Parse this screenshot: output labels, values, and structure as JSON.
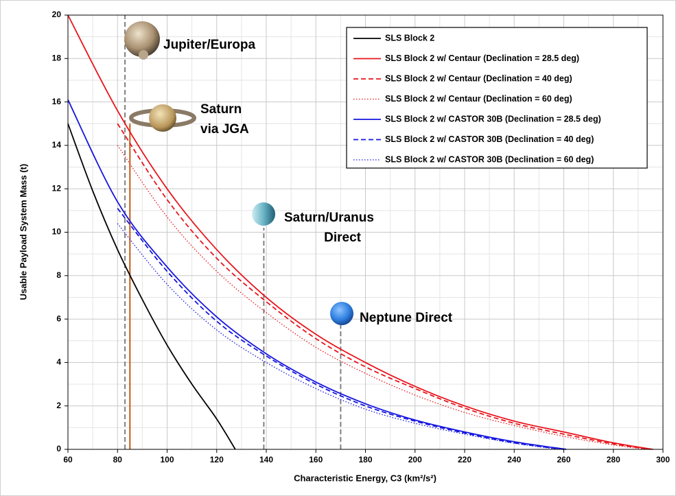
{
  "chart_data": {
    "type": "line",
    "x_label": "Characteristic Energy, C3 (km²/s²)",
    "y_label": "Usable Payload System Mass (t)",
    "xlim": [
      60,
      300
    ],
    "ylim": [
      0,
      20
    ],
    "xticks": [
      60,
      80,
      100,
      120,
      140,
      160,
      180,
      200,
      220,
      240,
      260,
      280,
      300
    ],
    "yticks": [
      0,
      2,
      4,
      6,
      8,
      10,
      12,
      14,
      16,
      18,
      20
    ],
    "x_minor_grid": [
      70,
      90,
      110,
      130,
      150,
      170,
      190,
      210,
      230,
      250,
      270,
      290
    ],
    "y_minor_grid": [
      1,
      3,
      5,
      7,
      9,
      11,
      13,
      15,
      17,
      19
    ],
    "grid": true,
    "legend": "upper right",
    "series": [
      {
        "name": "SLS Block 2",
        "color": "#000000",
        "style": "solid",
        "x": [
          60,
          70,
          80,
          90,
          100,
          110,
          120,
          127.5
        ],
        "values": [
          15,
          11.9,
          9.2,
          6.9,
          4.8,
          3.0,
          1.4,
          0
        ]
      },
      {
        "name": "SLS Block 2 w/ Centaur (Declination = 28.5 deg)",
        "color": "#e8141b",
        "style": "solid",
        "x": [
          60,
          80,
          100,
          120,
          140,
          160,
          180,
          200,
          220,
          240,
          260,
          280,
          296
        ],
        "values": [
          20,
          15.6,
          12.0,
          9.2,
          7.0,
          5.3,
          4.0,
          2.9,
          2.0,
          1.3,
          0.8,
          0.3,
          0
        ]
      },
      {
        "name": "SLS Block 2 w/ Centaur (Declination = 40 deg)",
        "color": "#e8141b",
        "style": "dashed",
        "x": [
          80,
          100,
          120,
          140,
          160,
          180,
          200,
          220,
          240,
          260,
          280,
          295
        ],
        "values": [
          15.0,
          11.5,
          8.8,
          6.8,
          5.1,
          3.8,
          2.8,
          1.9,
          1.2,
          0.7,
          0.25,
          0
        ]
      },
      {
        "name": "SLS Block 2 w/ Centaur (Declination = 60 deg)",
        "color": "#e8141b",
        "style": "dotted",
        "x": [
          80,
          100,
          120,
          140,
          160,
          180,
          200,
          220,
          240,
          260,
          280,
          294
        ],
        "values": [
          14.0,
          10.7,
          8.2,
          6.3,
          4.7,
          3.5,
          2.5,
          1.7,
          1.1,
          0.6,
          0.2,
          0
        ]
      },
      {
        "name": "SLS Block 2 w/ CASTOR 30B (Declination = 28.5 deg)",
        "color": "#1515e0",
        "style": "solid",
        "x": [
          60,
          80,
          100,
          120,
          140,
          160,
          180,
          200,
          220,
          240,
          261
        ],
        "values": [
          16.1,
          11.4,
          8.4,
          6.1,
          4.4,
          3.1,
          2.1,
          1.35,
          0.8,
          0.35,
          0
        ]
      },
      {
        "name": "SLS Block 2 w/ CASTOR 30B (Declination = 40 deg)",
        "color": "#1515e0",
        "style": "dashed",
        "x": [
          80,
          100,
          120,
          140,
          160,
          180,
          200,
          220,
          240,
          260
        ],
        "values": [
          11.1,
          8.2,
          5.9,
          4.3,
          3.0,
          2.0,
          1.3,
          0.75,
          0.3,
          0
        ]
      },
      {
        "name": "SLS Block 2 w/ CASTOR 30B (Declination = 60 deg)",
        "color": "#1515e0",
        "style": "dotted",
        "x": [
          80,
          100,
          120,
          140,
          160,
          180,
          200,
          220,
          240,
          258
        ],
        "values": [
          10.4,
          7.6,
          5.5,
          4.0,
          2.8,
          1.85,
          1.2,
          0.7,
          0.28,
          0
        ]
      }
    ],
    "annotations": [
      {
        "lines": [
          "Jupiter/Europa"
        ],
        "x": 83,
        "y_range": [
          0,
          20
        ],
        "color": "#808080",
        "style": "dashed"
      },
      {
        "lines": [
          "Saturn",
          "via JGA"
        ],
        "x": 85,
        "y_range": [
          0,
          15
        ],
        "color": "#c55a11",
        "style": "solid"
      },
      {
        "lines": [
          "Saturn/Uranus",
          "Direct"
        ],
        "x": 139,
        "y_range": [
          0,
          10.2
        ],
        "color": "#808080",
        "style": "dashed"
      },
      {
        "lines": [
          "Neptune Direct"
        ],
        "x": 170,
        "y_range": [
          0,
          6.1
        ],
        "color": "#808080",
        "style": "dashed"
      }
    ]
  }
}
